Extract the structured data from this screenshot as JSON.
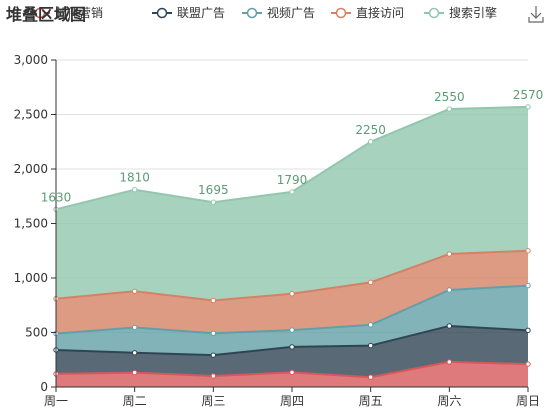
{
  "chart_data": {
    "type": "area",
    "stacked": true,
    "title": "堆叠区域图",
    "categories": [
      "周一",
      "周二",
      "周三",
      "周四",
      "周五",
      "周六",
      "周日"
    ],
    "ylim": [
      0,
      3000
    ],
    "yticks": [
      0,
      500,
      1000,
      1500,
      2000,
      2500,
      3000
    ],
    "ytick_labels": [
      "0",
      "500",
      "1,000",
      "1,500",
      "2,000",
      "2,500",
      "3,000"
    ],
    "grid": true,
    "legend_position": "top",
    "series": [
      {
        "name": "邮件营销",
        "color": "#d6585b",
        "values": [
          120,
          132,
          101,
          134,
          90,
          230,
          210
        ]
      },
      {
        "name": "联盟广告",
        "color": "#2f4554",
        "values": [
          220,
          182,
          191,
          234,
          290,
          330,
          310
        ]
      },
      {
        "name": "视频广告",
        "color": "#61a0a8",
        "values": [
          150,
          232,
          201,
          154,
          190,
          330,
          410
        ]
      },
      {
        "name": "直接访问",
        "color": "#d48265",
        "values": [
          320,
          332,
          301,
          334,
          390,
          330,
          320
        ]
      },
      {
        "name": "搜索引擎",
        "color": "#91c7ae",
        "values": [
          820,
          932,
          901,
          934,
          1290,
          1330,
          1320
        ]
      }
    ],
    "total_labels": [
      "1630",
      "1810",
      "1695",
      "1790",
      "2250",
      "2550",
      "2570"
    ],
    "data_label_color": "#5b9c74",
    "axis_color": "#333333",
    "grid_color": "#e0e0e0"
  },
  "toolbox": {
    "save_icon": "download-icon"
  }
}
